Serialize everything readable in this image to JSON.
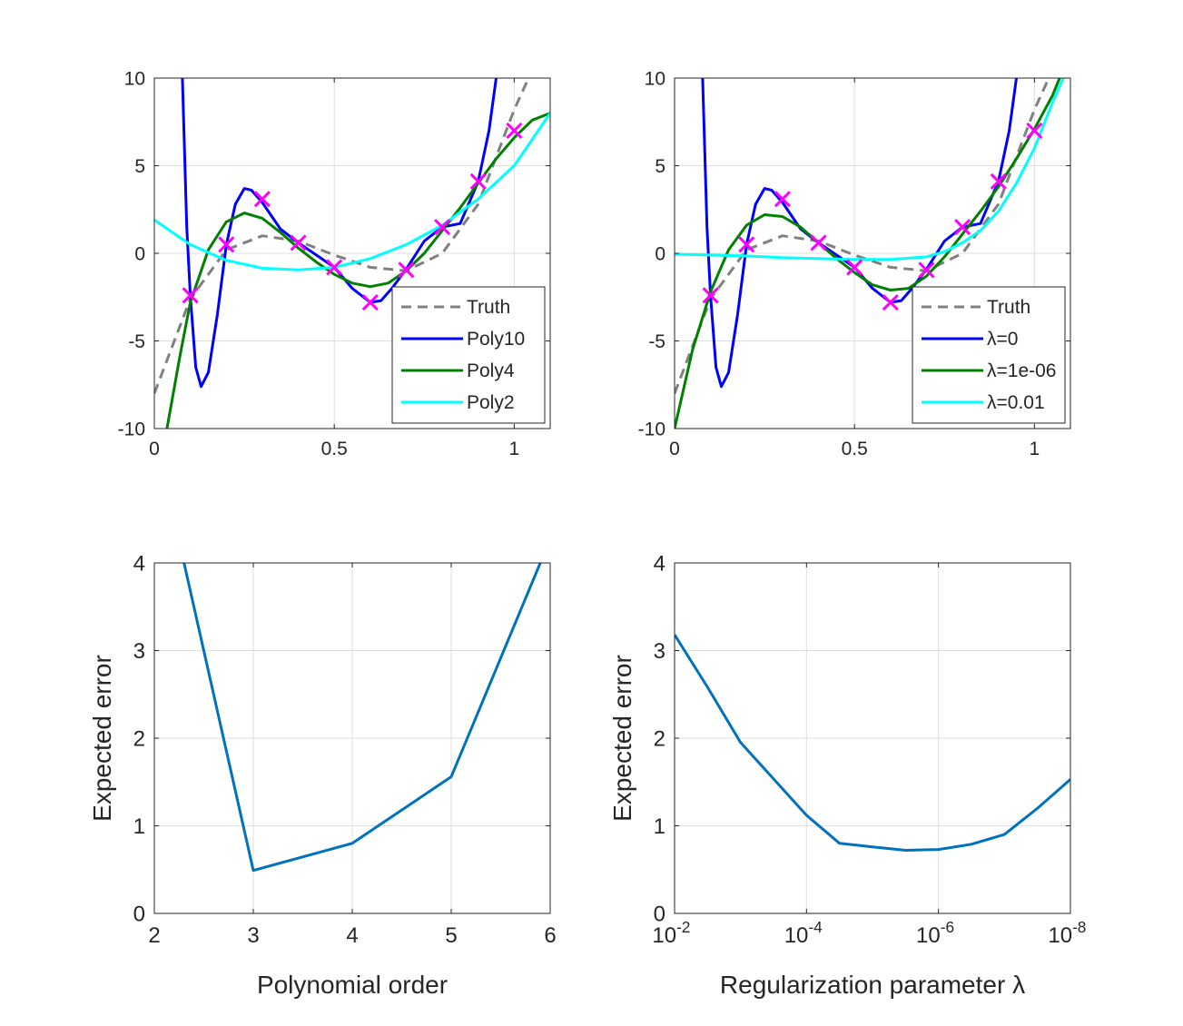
{
  "colors": {
    "truth": "#808080",
    "poly10": "#0000FF",
    "poly4": "#008000",
    "poly2": "#00FFFF",
    "samples": "#FF00FF",
    "error_line": "#0072BD",
    "grid": "#DFDFDF",
    "axes": "#262626"
  },
  "chart_data": [
    {
      "type": "line",
      "xlim": [
        0,
        1.1
      ],
      "ylim": [
        -10,
        10
      ],
      "xticks": [
        0,
        0.5,
        1
      ],
      "xtick_labels": [
        "0",
        "0.5",
        "1"
      ],
      "yticks": [
        -10,
        -5,
        0,
        5,
        10
      ],
      "ytick_labels": [
        "-10",
        "-5",
        "0",
        "5",
        "10"
      ],
      "grid": true,
      "legend_position": "bottom-right",
      "samples": {
        "x": [
          0.1,
          0.2,
          0.3,
          0.4,
          0.5,
          0.6,
          0.7,
          0.8,
          0.9,
          1.0
        ],
        "y": [
          -2.4,
          0.5,
          3.1,
          0.6,
          -0.8,
          -2.8,
          -0.95,
          1.5,
          4.1,
          7.0
        ]
      },
      "series": [
        {
          "name": "Truth",
          "style": "dashed",
          "x": [
            0,
            0.1,
            0.2,
            0.3,
            0.4,
            0.5,
            0.6,
            0.7,
            0.8,
            0.9,
            1.0,
            1.04
          ],
          "y": [
            -8,
            -2.6,
            0.2,
            1.0,
            0.7,
            -0.1,
            -0.8,
            -1.0,
            0.0,
            2.8,
            8.2,
            10
          ]
        },
        {
          "name": "Poly10",
          "x": [
            0.078,
            0.09,
            0.1,
            0.115,
            0.13,
            0.15,
            0.175,
            0.2,
            0.225,
            0.25,
            0.27,
            0.3,
            0.35,
            0.4,
            0.45,
            0.5,
            0.55,
            0.6,
            0.63,
            0.66,
            0.7,
            0.75,
            0.8,
            0.85,
            0.9,
            0.93,
            0.95
          ],
          "y": [
            10,
            1.5,
            -2.4,
            -6.5,
            -7.6,
            -6.8,
            -3.5,
            0.5,
            2.8,
            3.7,
            3.6,
            2.9,
            1.4,
            0.6,
            -0.1,
            -0.8,
            -2.0,
            -2.8,
            -2.7,
            -2.0,
            -0.9,
            0.7,
            1.5,
            1.7,
            4.1,
            7.0,
            10
          ]
        },
        {
          "name": "Poly4",
          "x": [
            0.035,
            0.07,
            0.1,
            0.15,
            0.2,
            0.25,
            0.3,
            0.35,
            0.4,
            0.45,
            0.5,
            0.55,
            0.6,
            0.65,
            0.7,
            0.75,
            0.8,
            0.85,
            0.9,
            0.95,
            1.0,
            1.05,
            1.1
          ],
          "y": [
            -10,
            -6.0,
            -2.8,
            0.2,
            1.8,
            2.3,
            2.0,
            1.2,
            0.3,
            -0.5,
            -1.2,
            -1.7,
            -1.9,
            -1.7,
            -1.0,
            0.0,
            1.3,
            2.6,
            4.0,
            5.4,
            6.6,
            7.6,
            8.0
          ]
        },
        {
          "name": "Poly2",
          "x": [
            0,
            0.1,
            0.2,
            0.3,
            0.4,
            0.5,
            0.6,
            0.7,
            0.8,
            0.9,
            1.0,
            1.1
          ],
          "y": [
            1.9,
            0.5,
            -0.4,
            -0.85,
            -0.95,
            -0.8,
            -0.3,
            0.5,
            1.6,
            3.1,
            5.0,
            8.0
          ]
        }
      ]
    },
    {
      "type": "line",
      "xlim": [
        0,
        1.1
      ],
      "ylim": [
        -10,
        10
      ],
      "xticks": [
        0,
        0.5,
        1
      ],
      "xtick_labels": [
        "0",
        "0.5",
        "1"
      ],
      "yticks": [
        -10,
        -5,
        0,
        5,
        10
      ],
      "ytick_labels": [
        "-10",
        "-5",
        "0",
        "5",
        "10"
      ],
      "grid": true,
      "legend_position": "bottom-right",
      "samples": {
        "x": [
          0.1,
          0.2,
          0.3,
          0.4,
          0.5,
          0.6,
          0.7,
          0.8,
          0.9,
          1.0
        ],
        "y": [
          -2.4,
          0.5,
          3.1,
          0.6,
          -0.8,
          -2.8,
          -0.95,
          1.5,
          4.1,
          7.0
        ]
      },
      "series": [
        {
          "name": "Truth",
          "style": "dashed",
          "x": [
            0,
            0.1,
            0.2,
            0.3,
            0.4,
            0.5,
            0.6,
            0.7,
            0.8,
            0.9,
            1.0,
            1.04
          ],
          "y": [
            -8,
            -2.6,
            0.2,
            1.0,
            0.7,
            -0.1,
            -0.8,
            -1.0,
            0.0,
            2.8,
            8.2,
            10
          ]
        },
        {
          "name": "λ=0",
          "x": [
            0.078,
            0.09,
            0.1,
            0.115,
            0.13,
            0.15,
            0.175,
            0.2,
            0.225,
            0.25,
            0.27,
            0.3,
            0.35,
            0.4,
            0.45,
            0.5,
            0.55,
            0.6,
            0.63,
            0.66,
            0.7,
            0.75,
            0.8,
            0.85,
            0.9,
            0.93,
            0.95
          ],
          "y": [
            10,
            1.5,
            -2.4,
            -6.5,
            -7.6,
            -6.8,
            -3.5,
            0.5,
            2.8,
            3.7,
            3.6,
            2.9,
            1.4,
            0.6,
            -0.1,
            -0.8,
            -2.0,
            -2.8,
            -2.7,
            -2.0,
            -0.9,
            0.7,
            1.5,
            1.7,
            4.1,
            7.0,
            10
          ]
        },
        {
          "name": "λ=1e-06",
          "x": [
            0,
            0.05,
            0.1,
            0.15,
            0.2,
            0.25,
            0.3,
            0.35,
            0.4,
            0.45,
            0.5,
            0.55,
            0.6,
            0.65,
            0.7,
            0.75,
            0.8,
            0.85,
            0.9,
            0.95,
            1.0,
            1.05,
            1.07
          ],
          "y": [
            -10,
            -5.5,
            -2.2,
            0.2,
            1.6,
            2.2,
            2.1,
            1.5,
            0.6,
            -0.3,
            -1.1,
            -1.8,
            -2.1,
            -2.0,
            -1.3,
            -0.2,
            1.1,
            2.4,
            3.8,
            5.4,
            7.1,
            9.0,
            10
          ]
        },
        {
          "name": "λ=0.01",
          "x": [
            0,
            0.1,
            0.2,
            0.3,
            0.4,
            0.5,
            0.6,
            0.7,
            0.75,
            0.8,
            0.85,
            0.9,
            0.95,
            1.0,
            1.05,
            1.08
          ],
          "y": [
            -0.05,
            -0.1,
            -0.15,
            -0.25,
            -0.3,
            -0.35,
            -0.35,
            -0.2,
            0.1,
            0.6,
            1.3,
            2.4,
            4.0,
            6.0,
            8.6,
            10
          ]
        }
      ]
    },
    {
      "type": "line",
      "xlabel": "Polynomial order",
      "ylabel": "Expected error",
      "xlim": [
        2,
        6
      ],
      "ylim": [
        0,
        4
      ],
      "xticks": [
        2,
        3,
        4,
        5,
        6
      ],
      "xtick_labels": [
        "2",
        "3",
        "4",
        "5",
        "6"
      ],
      "yticks": [
        0,
        1,
        2,
        3,
        4
      ],
      "ytick_labels": [
        "0",
        "1",
        "2",
        "3",
        "4"
      ],
      "grid": true,
      "series": [
        {
          "x": [
            2.3,
            3,
            4,
            5,
            5.9
          ],
          "y": [
            4.0,
            0.49,
            0.8,
            1.56,
            4.0
          ]
        }
      ]
    },
    {
      "type": "line",
      "xlabel": "Regularization parameter λ",
      "ylabel": "Expected error",
      "xscale": "log",
      "xreversed": true,
      "xlim": [
        0.01,
        1e-08
      ],
      "ylim": [
        0,
        4
      ],
      "xticks": [
        0.01,
        0.0001,
        1e-06,
        1e-08
      ],
      "xtick_labels": [
        [
          "10",
          "-2"
        ],
        [
          "10",
          "-4"
        ],
        [
          "10",
          "-6"
        ],
        [
          "10",
          "-8"
        ]
      ],
      "yticks": [
        0,
        1,
        2,
        3,
        4
      ],
      "ytick_labels": [
        "0",
        "1",
        "2",
        "3",
        "4"
      ],
      "grid": true,
      "series": [
        {
          "x": [
            0.01,
            0.00316,
            0.001,
            0.0001,
            3.16e-05,
            1e-05,
            3.16e-06,
            1e-06,
            3.16e-07,
            1e-07,
            3.16e-08,
            1e-08
          ],
          "y": [
            3.18,
            2.58,
            1.95,
            1.12,
            0.8,
            0.76,
            0.72,
            0.73,
            0.79,
            0.9,
            1.2,
            1.53
          ]
        }
      ]
    }
  ]
}
